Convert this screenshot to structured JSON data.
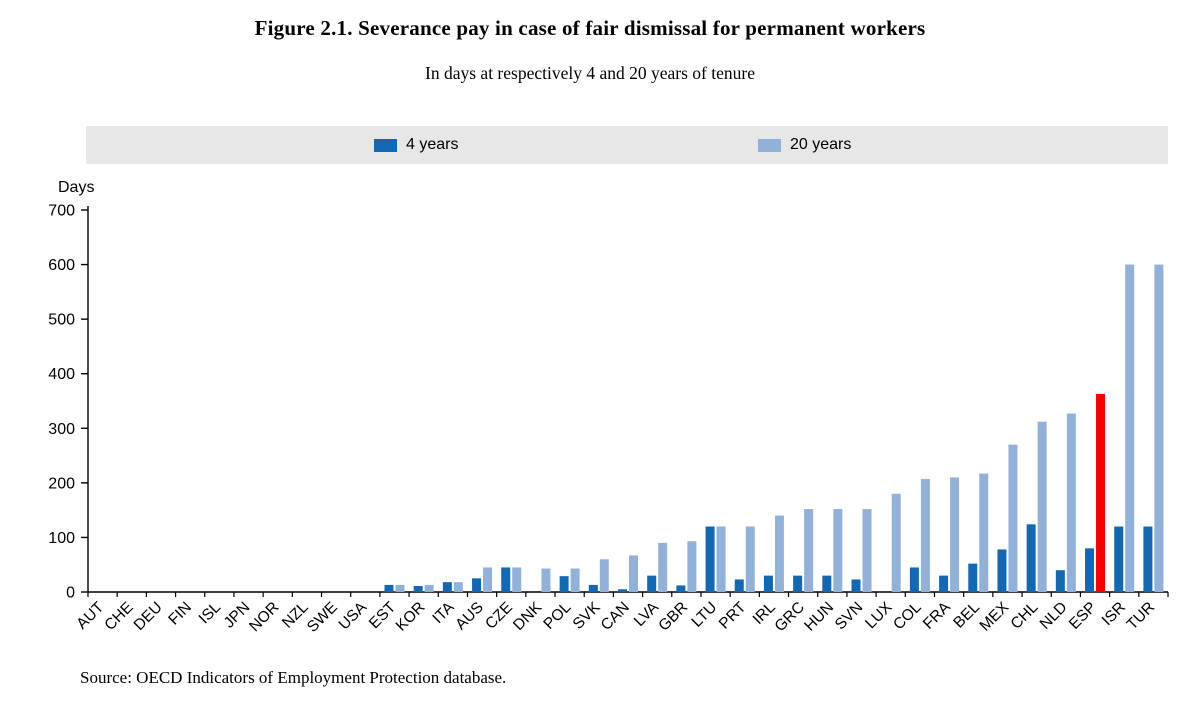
{
  "title": "Figure 2.1. Severance pay in case of fair dismissal for permanent workers",
  "subtitle": "In days at respectively 4 and 20 years of tenure",
  "source": "Source: OECD Indicators of Employment Protection database.",
  "chart_data": {
    "type": "bar",
    "title": "Figure 2.1. Severance pay in case of fair dismissal for permanent workers",
    "subtitle": "In days at respectively 4 and 20 years of tenure",
    "ylabel": "Days",
    "xlabel": "",
    "ylim": [
      0,
      700
    ],
    "yticks": [
      0,
      100,
      200,
      300,
      400,
      500,
      600,
      700
    ],
    "grid": false,
    "legend_position": "top",
    "categories": [
      "AUT",
      "CHE",
      "DEU",
      "FIN",
      "ISL",
      "JPN",
      "NOR",
      "NZL",
      "SWE",
      "USA",
      "EST",
      "KOR",
      "ITA",
      "AUS",
      "CZE",
      "DNK",
      "POL",
      "SVK",
      "CAN",
      "LVA",
      "GBR",
      "LTU",
      "PRT",
      "IRL",
      "GRC",
      "HUN",
      "SVN",
      "LUX",
      "COL",
      "FRA",
      "BEL",
      "MEX",
      "CHL",
      "NLD",
      "ESP",
      "ISR",
      "TUR"
    ],
    "series": [
      {
        "name": "4 years",
        "color": "#1268b3",
        "values": [
          0,
          0,
          0,
          0,
          0,
          0,
          0,
          0,
          0,
          0,
          13,
          11,
          18,
          25,
          45,
          0,
          29,
          13,
          5,
          30,
          12,
          120,
          23,
          30,
          30,
          30,
          23,
          0,
          45,
          30,
          52,
          78,
          124,
          40,
          80,
          120,
          120
        ]
      },
      {
        "name": "20 years",
        "color": "#92b1d8",
        "highlight_category": "ESP",
        "highlight_color": "#fb0000",
        "values": [
          0,
          0,
          0,
          0,
          0,
          0,
          0,
          0,
          0,
          0,
          13,
          13,
          18,
          45,
          45,
          43,
          43,
          60,
          67,
          90,
          93,
          120,
          120,
          140,
          152,
          152,
          152,
          180,
          207,
          210,
          217,
          270,
          312,
          327,
          363,
          600,
          600
        ]
      }
    ]
  }
}
